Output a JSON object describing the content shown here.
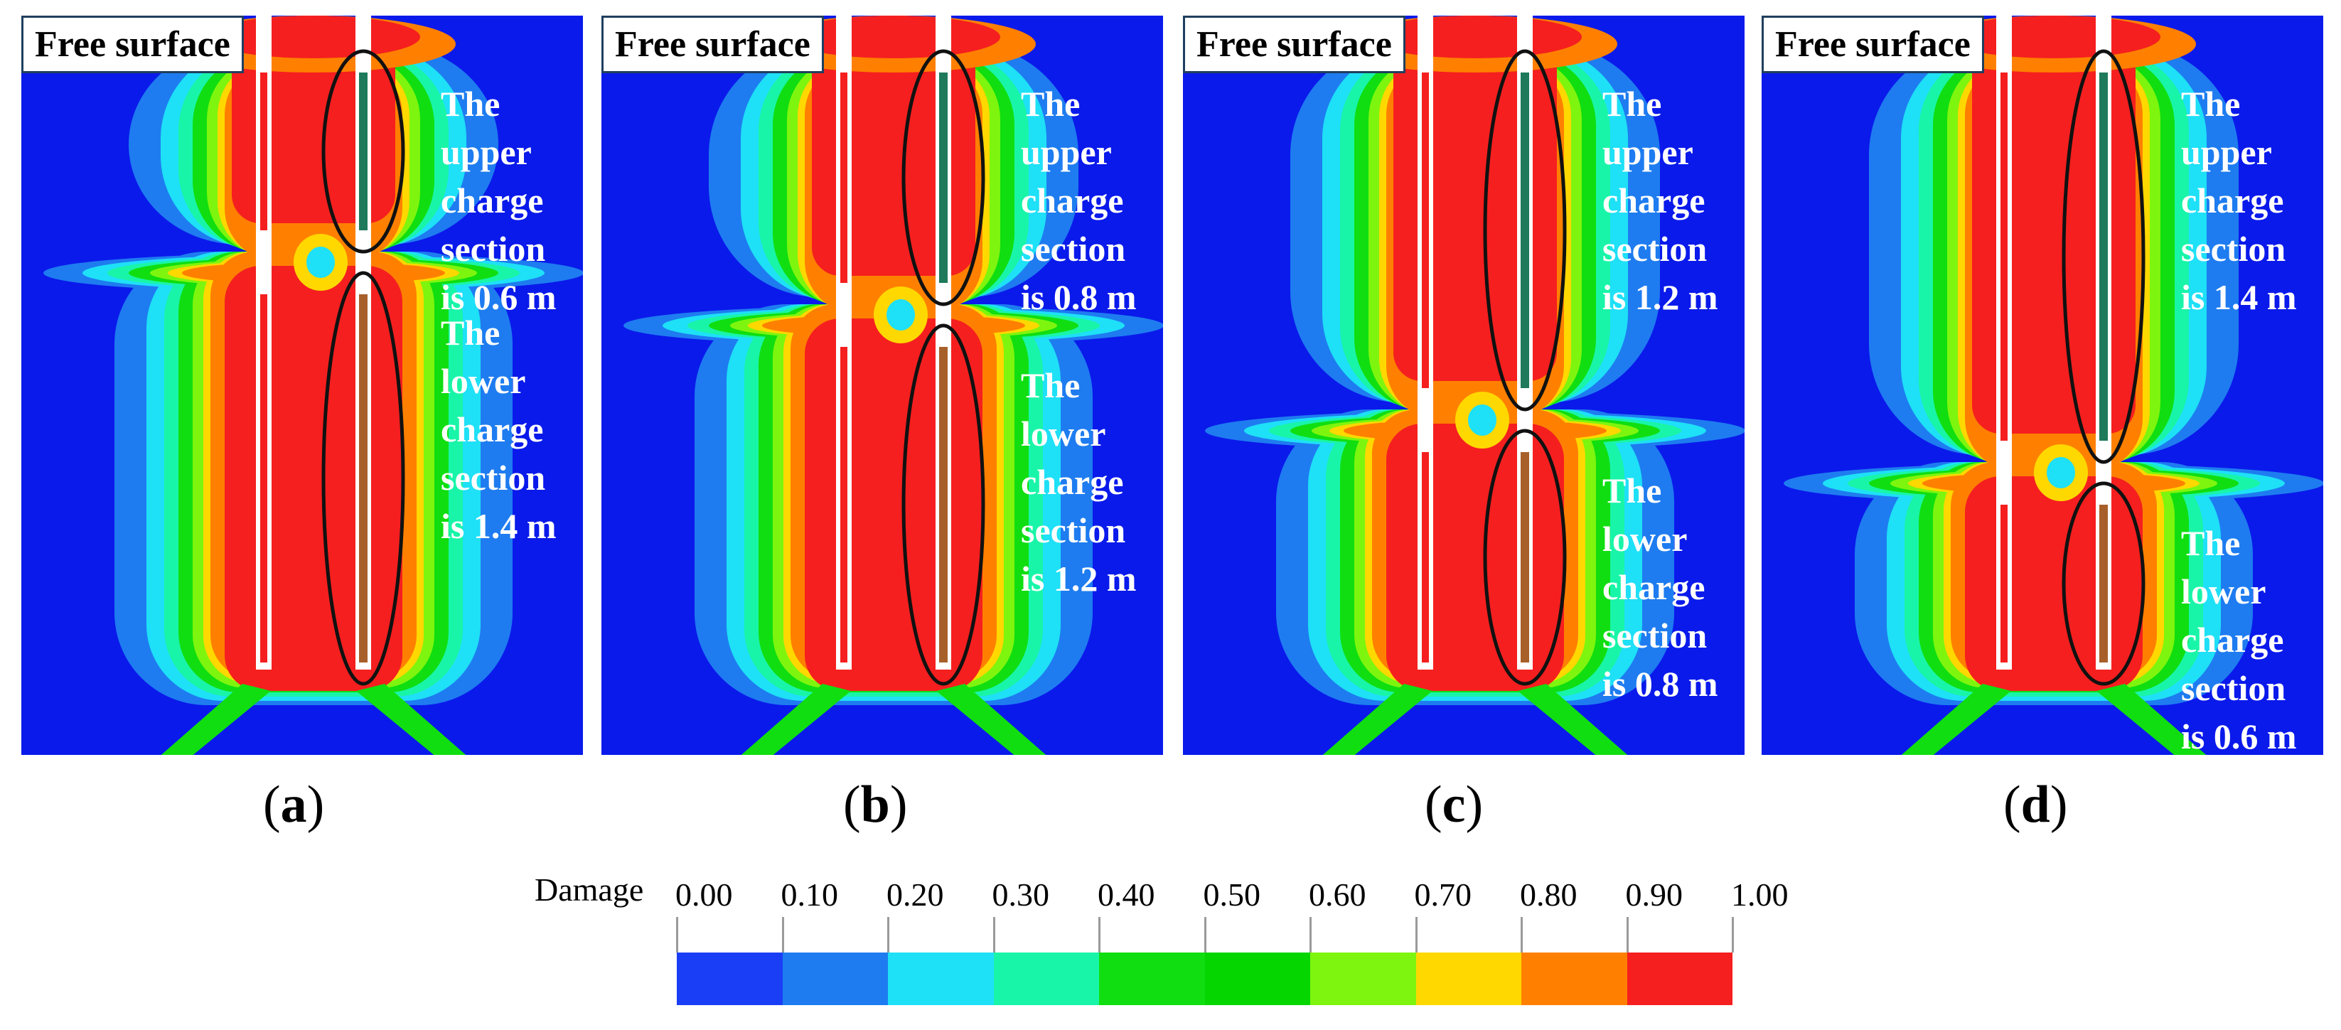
{
  "panels": [
    {
      "id": "a",
      "caption": "a",
      "free_surface": "Free surface",
      "upper_text": [
        "The",
        "upper",
        "charge",
        "section",
        "is 0.6 m"
      ],
      "lower_text": [
        "The",
        "lower",
        "charge",
        "section",
        "is 1.4 m"
      ],
      "upper_length_m": 0.6,
      "lower_length_m": 1.4
    },
    {
      "id": "b",
      "caption": "b",
      "free_surface": "Free surface",
      "upper_text": [
        "The",
        "upper",
        "charge",
        "section",
        "is 0.8 m"
      ],
      "lower_text": [
        "The",
        "lower",
        "charge",
        "section",
        "is 1.2 m"
      ],
      "upper_length_m": 0.8,
      "lower_length_m": 1.2
    },
    {
      "id": "c",
      "caption": "c",
      "free_surface": "Free surface",
      "upper_text": [
        "The",
        "upper",
        "charge",
        "section",
        "is 1.2 m"
      ],
      "lower_text": [
        "The",
        "lower",
        "charge",
        "section",
        "is 0.8 m"
      ],
      "upper_length_m": 1.2,
      "lower_length_m": 0.8
    },
    {
      "id": "d",
      "caption": "d",
      "free_surface": "Free surface",
      "upper_text": [
        "The",
        "upper",
        "charge",
        "section",
        "is 1.4 m"
      ],
      "lower_text": [
        "The",
        "lower",
        "charge",
        "section",
        "is 0.6 m"
      ],
      "upper_length_m": 1.4,
      "lower_length_m": 0.6
    }
  ],
  "legend": {
    "title": "Damage",
    "ticks": [
      "0.00",
      "0.10",
      "0.20",
      "0.30",
      "0.40",
      "0.50",
      "0.60",
      "0.70",
      "0.80",
      "0.90",
      "1.00"
    ],
    "colors": [
      "#1a3ef5",
      "#1e7cf0",
      "#1ee0f7",
      "#19f5a8",
      "#10de10",
      "#06d600",
      "#7ef50e",
      "#ffd800",
      "#ff8000",
      "#f51f1f"
    ]
  },
  "palette": {
    "background": "#0a1aeb",
    "damage_red": "#f51f1f",
    "upper_charge": "#1e7a5a",
    "lower_charge": "#a8602a",
    "borehole": "#ffffff",
    "ellipse": "#111111"
  }
}
